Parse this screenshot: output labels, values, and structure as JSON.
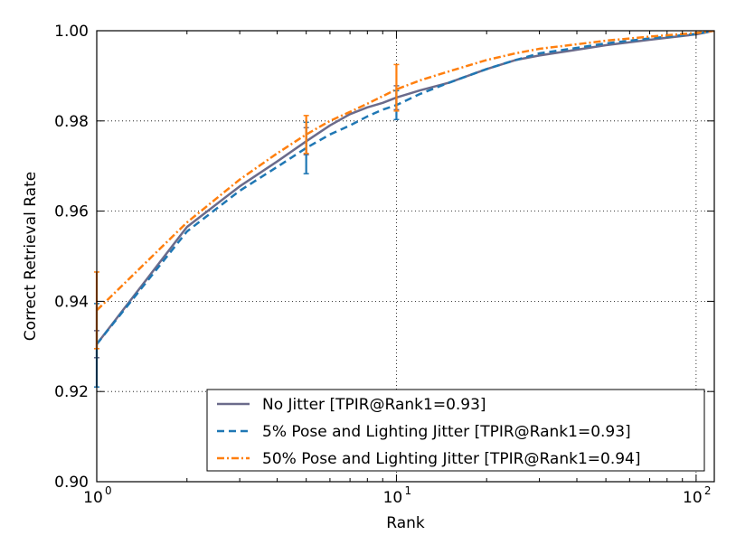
{
  "chart_data": {
    "type": "line",
    "title": "",
    "xlabel": "Rank",
    "ylabel": "Correct Retrieval Rate",
    "xscale": "log",
    "xlim": [
      1,
      115
    ],
    "ylim": [
      0.9,
      1.0
    ],
    "grid": true,
    "legend_position": "lower-right",
    "x_ticks": [
      {
        "value": 1,
        "base": "10",
        "exp": "0"
      },
      {
        "value": 10,
        "base": "10",
        "exp": "1"
      },
      {
        "value": 100,
        "base": "10",
        "exp": "2"
      }
    ],
    "y_ticks": [
      {
        "value": 0.9,
        "label": "0.90"
      },
      {
        "value": 0.92,
        "label": "0.92"
      },
      {
        "value": 0.94,
        "label": "0.94"
      },
      {
        "value": 0.96,
        "label": "0.96"
      },
      {
        "value": 0.98,
        "label": "0.98"
      },
      {
        "value": 1.0,
        "label": "1.00"
      }
    ],
    "series": [
      {
        "name": "No Jitter [TPIR@Rank1=0.93]",
        "color": "#6b6b8b",
        "style": "solid",
        "x": [
          1,
          2,
          3,
          4,
          5,
          6,
          7,
          8,
          9,
          10,
          12,
          15,
          20,
          25,
          30,
          40,
          50,
          70,
          100,
          115
        ],
        "y": [
          0.9305,
          0.9565,
          0.9655,
          0.971,
          0.9755,
          0.979,
          0.9815,
          0.983,
          0.984,
          0.9852,
          0.9868,
          0.9885,
          0.9915,
          0.9935,
          0.9945,
          0.9958,
          0.9968,
          0.998,
          0.9992,
          1.0
        ],
        "errorbars": [
          {
            "x": 1,
            "low": 0.9275,
            "high": 0.9335
          },
          {
            "x": 5,
            "low": 0.9725,
            "high": 0.9785
          },
          {
            "x": 10,
            "low": 0.9825,
            "high": 0.9878
          }
        ]
      },
      {
        "name": "5%  Pose and Lighting Jitter [TPIR@Rank1=0.93]",
        "color": "#1f77b4",
        "style": "dashed",
        "x": [
          1,
          2,
          3,
          4,
          5,
          6,
          7,
          8,
          9,
          10,
          12,
          15,
          20,
          25,
          30,
          40,
          50,
          70,
          100,
          115
        ],
        "y": [
          0.9305,
          0.9555,
          0.9645,
          0.9698,
          0.974,
          0.977,
          0.979,
          0.981,
          0.9825,
          0.9835,
          0.986,
          0.9885,
          0.9915,
          0.9935,
          0.995,
          0.9962,
          0.9972,
          0.9983,
          0.9993,
          1.0
        ],
        "errorbars": [
          {
            "x": 1,
            "low": 0.921,
            "high": 0.9395
          },
          {
            "x": 5,
            "low": 0.9683,
            "high": 0.9797
          },
          {
            "x": 10,
            "low": 0.9803,
            "high": 0.9867
          }
        ]
      },
      {
        "name": "50% Pose and Lighting Jitter [TPIR@Rank1=0.94]",
        "color": "#ff7f0e",
        "style": "dashdot",
        "x": [
          1,
          2,
          3,
          4,
          5,
          6,
          7,
          8,
          9,
          10,
          12,
          15,
          20,
          25,
          30,
          40,
          50,
          70,
          100,
          115
        ],
        "y": [
          0.938,
          0.9575,
          0.967,
          0.9728,
          0.977,
          0.98,
          0.982,
          0.9838,
          0.9855,
          0.987,
          0.989,
          0.991,
          0.9935,
          0.995,
          0.996,
          0.997,
          0.9978,
          0.9987,
          0.9995,
          1.0
        ],
        "errorbars": [
          {
            "x": 1,
            "low": 0.9295,
            "high": 0.9465
          },
          {
            "x": 5,
            "low": 0.9728,
            "high": 0.9812
          },
          {
            "x": 10,
            "low": 0.9822,
            "high": 0.9925
          }
        ]
      }
    ]
  }
}
